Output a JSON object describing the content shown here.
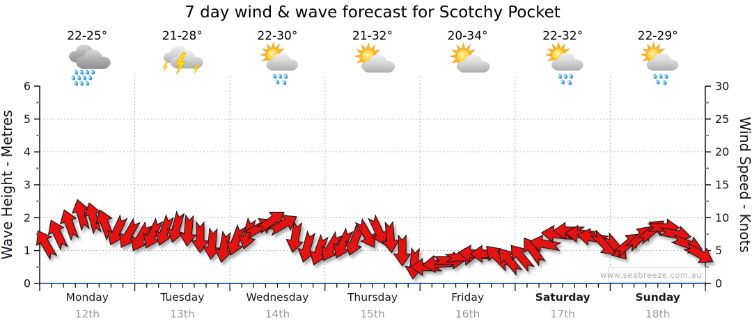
{
  "title": "7 day wind & wave forecast for Scotchy Pocket",
  "watermark": "www.seabreeze.com.au",
  "days": [
    {
      "name": "Monday",
      "date": "12th",
      "temp": "22-25°",
      "icon": "rain",
      "bold": false
    },
    {
      "name": "Tuesday",
      "date": "13th",
      "temp": "21-28°",
      "icon": "storm",
      "bold": false
    },
    {
      "name": "Wednesday",
      "date": "14th",
      "temp": "22-30°",
      "icon": "sun-cloud-rain",
      "bold": false
    },
    {
      "name": "Thursday",
      "date": "15th",
      "temp": "21-32°",
      "icon": "sun-cloud",
      "bold": false
    },
    {
      "name": "Friday",
      "date": "16th",
      "temp": "20-34°",
      "icon": "sun-cloud",
      "bold": false
    },
    {
      "name": "Saturday",
      "date": "17th",
      "temp": "22-32°",
      "icon": "sun-cloud-rain",
      "bold": true
    },
    {
      "name": "Sunday",
      "date": "18th",
      "temp": "22-29°",
      "icon": "sun-cloud-rain",
      "bold": true
    }
  ],
  "left_axis": {
    "title": "Wave Height - Metres",
    "ticks": [
      "0",
      "1",
      "2",
      "3",
      "4",
      "5",
      "6"
    ],
    "range": [
      0,
      6
    ]
  },
  "right_axis": {
    "title": "Wind Speed - Knots",
    "ticks": [
      "0",
      "5",
      "10",
      "15",
      "20",
      "25",
      "30"
    ],
    "range": [
      0,
      30
    ]
  },
  "chart_data": {
    "type": "line",
    "style": "wind-direction-arrow-band",
    "title": "7 day wind & wave forecast for Scotchy Pocket",
    "categories": [
      "Monday 12th",
      "Tuesday 13th",
      "Wednesday 14th",
      "Thursday 15th",
      "Friday 16th",
      "Saturday 17th",
      "Sunday 18th"
    ],
    "points_per_day": 8,
    "interval_hours": 3,
    "left_axis": {
      "label": "Wave Height - Metres",
      "range": [
        0,
        6
      ],
      "gridlines": [
        1,
        2,
        3,
        4,
        5
      ]
    },
    "right_axis": {
      "label": "Wind Speed - Knots",
      "range": [
        0,
        30
      ],
      "gridlines": [
        5,
        10,
        15,
        20,
        25
      ]
    },
    "grid": "dotted",
    "legend": "none",
    "series": [
      {
        "name": "Wind Speed",
        "unit": "knots",
        "axis": "right",
        "values": [
          6,
          7.5,
          9,
          10.5,
          10,
          9,
          8,
          7.5,
          7,
          7.5,
          8,
          8.5,
          8,
          7,
          6,
          5.5,
          6.5,
          7.5,
          8.5,
          9.5,
          9,
          7,
          5.5,
          5,
          5.5,
          6,
          6.5,
          7.5,
          8,
          7,
          5,
          3,
          2.5,
          3,
          3.5,
          4,
          4.5,
          4.5,
          4,
          3.5,
          4,
          5,
          6,
          7.5,
          8,
          7.5,
          7,
          6,
          5.5,
          6,
          7,
          8,
          8.5,
          7.5,
          6,
          4.5
        ],
        "directions_deg": [
          -30,
          -25,
          -20,
          -15,
          -15,
          -20,
          205,
          210,
          210,
          205,
          200,
          195,
          185,
          180,
          185,
          190,
          200,
          195,
          60,
          55,
          60,
          190,
          195,
          200,
          210,
          205,
          200,
          150,
          155,
          175,
          180,
          185,
          270,
          265,
          90,
          85,
          275,
          270,
          -45,
          -40,
          -40,
          -35,
          280,
          275,
          270,
          275,
          280,
          135,
          140,
          50,
          45,
          50,
          90,
          100,
          110,
          120
        ]
      }
    ],
    "colors": {
      "arrow": "#e51212",
      "arrow_outline": "#151515",
      "x_axis_line": "#336699",
      "axis_line": "#1a1a1a",
      "gridline": "#b5b5b5",
      "date_label": "#9a9a9a",
      "watermark": "#b3b3b3"
    }
  }
}
